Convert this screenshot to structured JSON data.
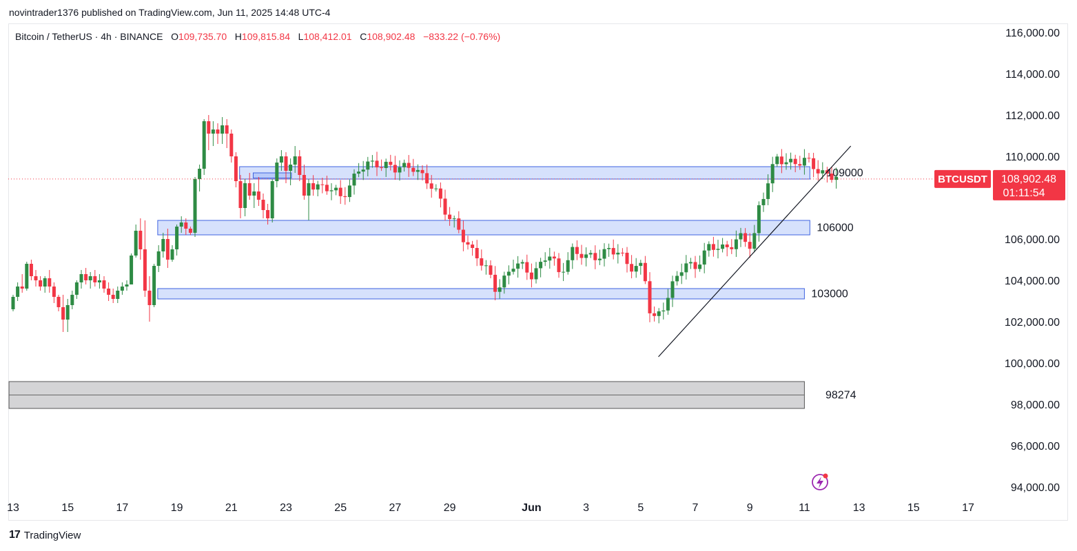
{
  "header": {
    "publisher_line": "novintrader1376 published on TradingView.com, Jun 11, 2025 14:48 UTC-4"
  },
  "legend": {
    "symbol": "Bitcoin / TetherUS · 4h · BINANCE",
    "open_label": "O",
    "open": "109,735.70",
    "high_label": "H",
    "high": "109,815.84",
    "low_label": "L",
    "low": "108,412.01",
    "close_label": "C",
    "close": "108,902.48",
    "change": "−833.22 (−0.76%)"
  },
  "price_tag": {
    "ticker": "BTCUSDT",
    "price": "108,902.48",
    "countdown": "01:11:54"
  },
  "footer": {
    "logo": "17",
    "brand": "TradingView"
  },
  "colors": {
    "up": "#2e8b44",
    "down": "#f23645",
    "zone_fill": "#cfdcfc",
    "zone_stroke": "#3e62e0",
    "gray_zone": "#d4d4d6"
  },
  "chart_data": {
    "type": "candlestick",
    "title": "Bitcoin / TetherUS · 4h · BINANCE",
    "ylim": [
      93000,
      117000
    ],
    "y_ticks": [
      {
        "value": 116000,
        "label": "116,000.00"
      },
      {
        "value": 114000,
        "label": "114,000.00"
      },
      {
        "value": 112000,
        "label": "112,000.00"
      },
      {
        "value": 110000,
        "label": "110,000.00"
      },
      {
        "value": 106000,
        "label": "106,000.00"
      },
      {
        "value": 104000,
        "label": "104,000.00"
      },
      {
        "value": 102000,
        "label": "102,000.00"
      },
      {
        "value": 100000,
        "label": "100,000.00"
      },
      {
        "value": 98000,
        "label": "98,000.00"
      },
      {
        "value": 96000,
        "label": "96,000.00"
      },
      {
        "value": 94000,
        "label": "94,000.00"
      }
    ],
    "x_ticks": [
      {
        "day": 0,
        "label": "13"
      },
      {
        "day": 2,
        "label": "15"
      },
      {
        "day": 4,
        "label": "17"
      },
      {
        "day": 6,
        "label": "19"
      },
      {
        "day": 8,
        "label": "21"
      },
      {
        "day": 10,
        "label": "23"
      },
      {
        "day": 12,
        "label": "25"
      },
      {
        "day": 14,
        "label": "27"
      },
      {
        "day": 16,
        "label": "29"
      },
      {
        "day": 19,
        "label": "Jun",
        "bold": true
      },
      {
        "day": 21,
        "label": "3"
      },
      {
        "day": 23,
        "label": "5"
      },
      {
        "day": 25,
        "label": "7"
      },
      {
        "day": 27,
        "label": "9"
      },
      {
        "day": 29,
        "label": "11"
      },
      {
        "day": 31,
        "label": "13"
      },
      {
        "day": 33,
        "label": "15"
      },
      {
        "day": 35,
        "label": "17"
      }
    ],
    "zones": [
      {
        "label": "109000",
        "top": 109500,
        "bottom": 108900,
        "x0": 8.3,
        "x1": 29.2
      },
      {
        "label": "106000",
        "top": 106900,
        "bottom": 106200,
        "x0": 5.3,
        "x1": 29.2
      },
      {
        "label": "103000",
        "top": 103600,
        "bottom": 103100,
        "x0": 5.3,
        "x1": 29.0
      }
    ],
    "inner_box": {
      "top": 109200,
      "bottom": 108950,
      "x0": 8.8,
      "x1": 10.2
    },
    "gray_zone": {
      "label": "98274",
      "top": 99100,
      "bottom": 97800,
      "mid": 98450,
      "x0": -0.15,
      "x1": 29.0
    },
    "current_price": 108902.48,
    "trendline": [
      {
        "day": 23.65,
        "price": 100300
      },
      {
        "day": 30.7,
        "price": 110500
      }
    ],
    "candles": [
      [
        0,
        102600,
        103300,
        102500,
        103200
      ],
      [
        0.167,
        103200,
        103900,
        103000,
        103700
      ],
      [
        0.333,
        103700,
        104300,
        103400,
        103600
      ],
      [
        0.5,
        103600,
        104900,
        103500,
        104800
      ],
      [
        0.667,
        104800,
        105000,
        104000,
        104200
      ],
      [
        0.833,
        104200,
        104500,
        103700,
        104000
      ],
      [
        1,
        104000,
        104200,
        103500,
        103700
      ],
      [
        1.167,
        103700,
        104200,
        103400,
        104100
      ],
      [
        1.333,
        104100,
        104500,
        103400,
        103700
      ],
      [
        1.5,
        103700,
        103900,
        102900,
        103200
      ],
      [
        1.667,
        103200,
        103300,
        102500,
        102700
      ],
      [
        1.833,
        102700,
        103300,
        101500,
        102100
      ],
      [
        2,
        102100,
        103100,
        101500,
        102800
      ],
      [
        2.167,
        102800,
        103500,
        102600,
        103300
      ],
      [
        2.333,
        103300,
        104000,
        103100,
        103900
      ],
      [
        2.5,
        103900,
        104500,
        103600,
        104300
      ],
      [
        2.667,
        104300,
        104600,
        103800,
        104000
      ],
      [
        2.833,
        104000,
        104400,
        103600,
        104200
      ],
      [
        3,
        104200,
        104500,
        103700,
        103900
      ],
      [
        3.167,
        103900,
        104300,
        103600,
        104000
      ],
      [
        3.333,
        104000,
        104200,
        103400,
        103600
      ],
      [
        3.5,
        103600,
        103900,
        103000,
        103300
      ],
      [
        3.667,
        103300,
        103600,
        102900,
        103100
      ],
      [
        3.833,
        103100,
        103700,
        102900,
        103500
      ],
      [
        4,
        103500,
        103900,
        103300,
        103700
      ],
      [
        4.167,
        103700,
        104000,
        103500,
        103800
      ],
      [
        4.333,
        103800,
        105300,
        103800,
        105200
      ],
      [
        4.5,
        105200,
        106700,
        105100,
        106400
      ],
      [
        4.667,
        106400,
        107000,
        105000,
        105500
      ],
      [
        4.833,
        105500,
        106900,
        103200,
        103500
      ],
      [
        5,
        103500,
        104200,
        102000,
        102800
      ],
      [
        5.167,
        102800,
        104800,
        102700,
        104700
      ],
      [
        5.333,
        104700,
        105700,
        104400,
        105400
      ],
      [
        5.5,
        105400,
        106300,
        105100,
        106000
      ],
      [
        5.667,
        106000,
        106500,
        104600,
        105000
      ],
      [
        5.833,
        105000,
        105700,
        104900,
        105500
      ],
      [
        6,
        105500,
        106700,
        105200,
        106600
      ],
      [
        6.167,
        106600,
        107100,
        106300,
        106800
      ],
      [
        6.333,
        106800,
        107000,
        106200,
        106500
      ],
      [
        6.5,
        106500,
        106600,
        106200,
        106300
      ],
      [
        6.667,
        106300,
        109000,
        106100,
        108900
      ],
      [
        6.833,
        108900,
        109600,
        108300,
        109400
      ],
      [
        7,
        109400,
        111800,
        109100,
        111700
      ],
      [
        7.167,
        111700,
        112000,
        110300,
        111100
      ],
      [
        7.333,
        111100,
        111700,
        110500,
        111300
      ],
      [
        7.5,
        111300,
        111600,
        110600,
        111100
      ],
      [
        7.667,
        111100,
        111900,
        110600,
        111500
      ],
      [
        7.833,
        111500,
        111800,
        110400,
        111100
      ],
      [
        8,
        111100,
        111300,
        109700,
        110000
      ],
      [
        8.167,
        110000,
        110200,
        108500,
        108800
      ],
      [
        8.333,
        108800,
        109100,
        107000,
        107500
      ],
      [
        8.5,
        107500,
        108900,
        107100,
        108700
      ],
      [
        8.667,
        108700,
        109200,
        107900,
        108100
      ],
      [
        8.833,
        108100,
        108700,
        107500,
        108300
      ],
      [
        9,
        108300,
        109000,
        107600,
        107900
      ],
      [
        9.167,
        107900,
        108200,
        107000,
        107400
      ],
      [
        9.333,
        107400,
        107700,
        106700,
        107000
      ],
      [
        9.5,
        107000,
        108900,
        106800,
        108800
      ],
      [
        9.667,
        108800,
        109900,
        108500,
        109700
      ],
      [
        9.833,
        109700,
        110300,
        109300,
        110000
      ],
      [
        10,
        110000,
        110200,
        108700,
        109300
      ],
      [
        10.167,
        109300,
        109900,
        108600,
        109600
      ],
      [
        10.333,
        109600,
        110500,
        109200,
        110000
      ],
      [
        10.5,
        110000,
        110300,
        108800,
        109100
      ],
      [
        10.667,
        109100,
        109600,
        107900,
        108100
      ],
      [
        10.833,
        108100,
        108900,
        106900,
        108700
      ]
    ]
  }
}
